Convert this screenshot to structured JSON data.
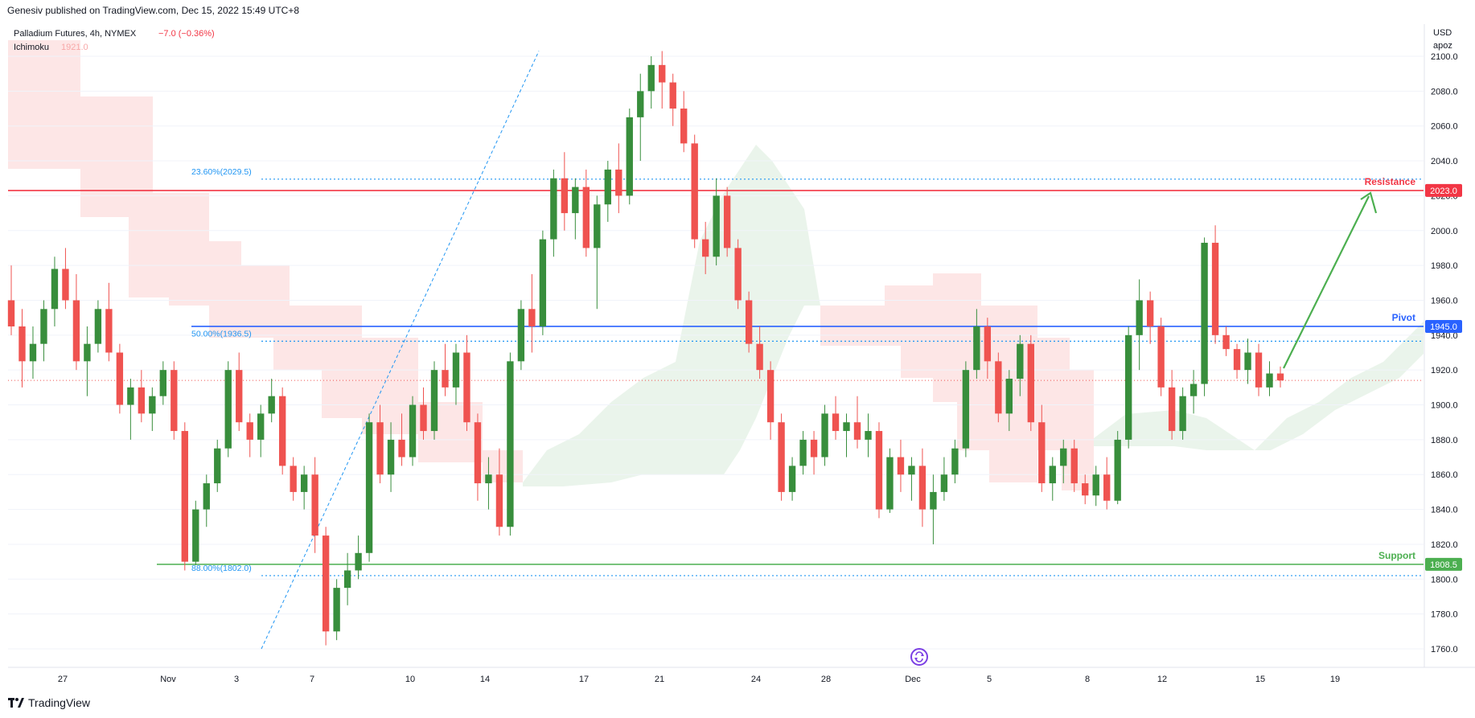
{
  "header": {
    "publish_line": "Genesiv published on TradingView.com, Dec 15, 2022 15:49 UTC+8"
  },
  "legend": {
    "symbol": "Palladium Futures, 4h, NYMEX",
    "change": "−7.0 (−0.36%)",
    "indicator_name": "Ichimoku",
    "indicator_value": "1921.0"
  },
  "price_scale": {
    "currency": "USD",
    "unit": "apoz"
  },
  "footer": {
    "brand": "TradingView"
  },
  "colors": {
    "up": "#26a69a",
    "up_candle": "#388e3c",
    "down": "#ef5350",
    "resistance": "#f23645",
    "pivot": "#2962ff",
    "support": "#4caf50",
    "fib": "#2196f3",
    "cloud_bear": "#fde2e2",
    "cloud_bull": "#e8f3e9"
  },
  "chart_data": {
    "type": "candlestick",
    "timeframe": "4h",
    "ylim": [
      1750,
      2110
    ],
    "y_ticks": [
      1760,
      1780,
      1800,
      1820,
      1840,
      1860,
      1880,
      1900,
      1920,
      1940,
      1960,
      1980,
      2000,
      2020,
      2040,
      2060,
      2080,
      2100
    ],
    "y_tick_labels": [
      "1760.0",
      "1780.0",
      "1800.0",
      "1820.0",
      "1840.0",
      "1860.0",
      "1880.0",
      "1900.0",
      "1920.0",
      "1940.0",
      "1960.0",
      "1980.0",
      "2000.0",
      "2020.0",
      "2040.0",
      "2060.0",
      "2080.0",
      "2100.0"
    ],
    "x_ticks": [
      "27",
      "Nov",
      "3",
      "7",
      "10",
      "14",
      "17",
      "21",
      "24",
      "28",
      "Dec",
      "5",
      "8",
      "12",
      "15",
      "19"
    ],
    "levels": [
      {
        "name": "Resistance",
        "value": 2023.0,
        "label": "2023.0"
      },
      {
        "name": "Pivot",
        "value": 1945.0,
        "label": "1945.0"
      },
      {
        "name": "Support",
        "value": 1808.5,
        "label": "1808.5"
      }
    ],
    "fibonacci": [
      {
        "label": "23.60%(2029.5)",
        "value": 2029.5
      },
      {
        "label": "50.00%(1936.5)",
        "value": 1936.5
      },
      {
        "label": "88.00%(1802.0)",
        "value": 1802.0
      }
    ],
    "swing": {
      "from": 1760,
      "to": 2103
    },
    "last_price": 1914,
    "ohlc": [
      [
        1960,
        1980,
        1940,
        1945
      ],
      [
        1945,
        1955,
        1910,
        1925
      ],
      [
        1925,
        1945,
        1915,
        1935
      ],
      [
        1935,
        1960,
        1925,
        1955
      ],
      [
        1955,
        1985,
        1945,
        1978
      ],
      [
        1978,
        1990,
        1955,
        1960
      ],
      [
        1960,
        1975,
        1920,
        1925
      ],
      [
        1925,
        1945,
        1905,
        1935
      ],
      [
        1935,
        1960,
        1930,
        1955
      ],
      [
        1955,
        1970,
        1925,
        1930
      ],
      [
        1930,
        1935,
        1895,
        1900
      ],
      [
        1900,
        1915,
        1880,
        1910
      ],
      [
        1910,
        1920,
        1890,
        1895
      ],
      [
        1895,
        1910,
        1885,
        1905
      ],
      [
        1905,
        1925,
        1900,
        1920
      ],
      [
        1920,
        1925,
        1880,
        1885
      ],
      [
        1885,
        1890,
        1805,
        1810
      ],
      [
        1810,
        1845,
        1808,
        1840
      ],
      [
        1840,
        1860,
        1830,
        1855
      ],
      [
        1855,
        1880,
        1850,
        1875
      ],
      [
        1875,
        1925,
        1870,
        1920
      ],
      [
        1920,
        1930,
        1885,
        1890
      ],
      [
        1890,
        1895,
        1870,
        1880
      ],
      [
        1880,
        1900,
        1870,
        1895
      ],
      [
        1895,
        1915,
        1890,
        1905
      ],
      [
        1905,
        1910,
        1860,
        1865
      ],
      [
        1865,
        1870,
        1845,
        1850
      ],
      [
        1850,
        1865,
        1840,
        1860
      ],
      [
        1860,
        1870,
        1815,
        1825
      ],
      [
        1825,
        1830,
        1762,
        1770
      ],
      [
        1770,
        1800,
        1765,
        1795
      ],
      [
        1795,
        1815,
        1785,
        1805
      ],
      [
        1805,
        1825,
        1800,
        1815
      ],
      [
        1815,
        1895,
        1810,
        1890
      ],
      [
        1890,
        1900,
        1855,
        1860
      ],
      [
        1860,
        1890,
        1850,
        1880
      ],
      [
        1880,
        1895,
        1865,
        1870
      ],
      [
        1870,
        1905,
        1865,
        1900
      ],
      [
        1900,
        1910,
        1880,
        1885
      ],
      [
        1885,
        1925,
        1880,
        1920
      ],
      [
        1920,
        1935,
        1905,
        1910
      ],
      [
        1910,
        1935,
        1900,
        1930
      ],
      [
        1930,
        1940,
        1885,
        1890
      ],
      [
        1890,
        1895,
        1845,
        1855
      ],
      [
        1855,
        1870,
        1840,
        1860
      ],
      [
        1860,
        1875,
        1825,
        1830
      ],
      [
        1830,
        1930,
        1825,
        1925
      ],
      [
        1925,
        1960,
        1920,
        1955
      ],
      [
        1955,
        1975,
        1930,
        1945
      ],
      [
        1945,
        2000,
        1940,
        1995
      ],
      [
        1995,
        2035,
        1985,
        2030
      ],
      [
        2030,
        2045,
        2000,
        2010
      ],
      [
        2010,
        2030,
        1995,
        2025
      ],
      [
        2025,
        2035,
        1985,
        1990
      ],
      [
        1990,
        2020,
        1955,
        2015
      ],
      [
        2015,
        2040,
        2005,
        2035
      ],
      [
        2035,
        2050,
        2010,
        2020
      ],
      [
        2020,
        2070,
        2015,
        2065
      ],
      [
        2065,
        2090,
        2040,
        2080
      ],
      [
        2080,
        2100,
        2070,
        2095
      ],
      [
        2095,
        2103,
        2070,
        2085
      ],
      [
        2085,
        2090,
        2060,
        2070
      ],
      [
        2070,
        2080,
        2045,
        2050
      ],
      [
        2050,
        2055,
        1990,
        1995
      ],
      [
        1995,
        2005,
        1975,
        1985
      ],
      [
        1985,
        2030,
        1980,
        2020
      ],
      [
        2020,
        2025,
        1985,
        1990
      ],
      [
        1990,
        1995,
        1955,
        1960
      ],
      [
        1960,
        1965,
        1930,
        1935
      ],
      [
        1935,
        1945,
        1915,
        1920
      ],
      [
        1920,
        1925,
        1880,
        1890
      ],
      [
        1890,
        1895,
        1845,
        1850
      ],
      [
        1850,
        1870,
        1845,
        1865
      ],
      [
        1865,
        1885,
        1860,
        1880
      ],
      [
        1880,
        1885,
        1860,
        1870
      ],
      [
        1870,
        1900,
        1865,
        1895
      ],
      [
        1895,
        1905,
        1880,
        1885
      ],
      [
        1885,
        1895,
        1870,
        1890
      ],
      [
        1890,
        1905,
        1875,
        1880
      ],
      [
        1880,
        1895,
        1870,
        1885
      ],
      [
        1885,
        1890,
        1835,
        1840
      ],
      [
        1840,
        1875,
        1838,
        1870
      ],
      [
        1870,
        1880,
        1850,
        1860
      ],
      [
        1860,
        1870,
        1845,
        1865
      ],
      [
        1865,
        1875,
        1830,
        1840
      ],
      [
        1840,
        1860,
        1820,
        1850
      ],
      [
        1850,
        1870,
        1845,
        1860
      ],
      [
        1860,
        1880,
        1855,
        1875
      ],
      [
        1875,
        1925,
        1870,
        1920
      ],
      [
        1920,
        1955,
        1915,
        1945
      ],
      [
        1945,
        1950,
        1915,
        1925
      ],
      [
        1925,
        1930,
        1890,
        1895
      ],
      [
        1895,
        1920,
        1885,
        1915
      ],
      [
        1915,
        1940,
        1905,
        1935
      ],
      [
        1935,
        1940,
        1885,
        1890
      ],
      [
        1890,
        1900,
        1850,
        1855
      ],
      [
        1855,
        1870,
        1845,
        1865
      ],
      [
        1865,
        1880,
        1855,
        1875
      ],
      [
        1875,
        1880,
        1850,
        1855
      ],
      [
        1855,
        1860,
        1843,
        1848
      ],
      [
        1848,
        1865,
        1842,
        1860
      ],
      [
        1860,
        1870,
        1840,
        1845
      ],
      [
        1845,
        1885,
        1843,
        1880
      ],
      [
        1880,
        1945,
        1875,
        1940
      ],
      [
        1940,
        1972,
        1920,
        1960
      ],
      [
        1960,
        1965,
        1935,
        1945
      ],
      [
        1945,
        1950,
        1905,
        1910
      ],
      [
        1910,
        1920,
        1880,
        1885
      ],
      [
        1885,
        1910,
        1880,
        1905
      ],
      [
        1905,
        1920,
        1895,
        1912
      ],
      [
        1912,
        1996,
        1905,
        1993
      ],
      [
        1993,
        2003,
        1935,
        1940
      ],
      [
        1940,
        1945,
        1928,
        1932
      ],
      [
        1932,
        1935,
        1915,
        1920
      ],
      [
        1920,
        1938,
        1912,
        1930
      ],
      [
        1930,
        1935,
        1905,
        1910
      ],
      [
        1910,
        1925,
        1905,
        1918
      ],
      [
        1918,
        1922,
        1910,
        1914
      ]
    ]
  }
}
